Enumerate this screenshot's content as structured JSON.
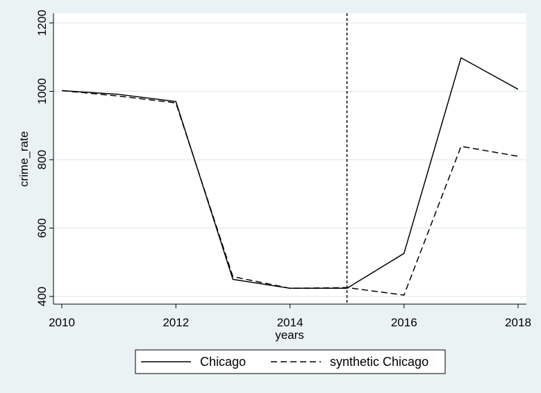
{
  "chart_data": {
    "type": "line",
    "xlabel": "years",
    "ylabel": "crime_rate",
    "x": [
      2010,
      2011,
      2012,
      2013,
      2014,
      2015,
      2016,
      2017,
      2018
    ],
    "xlim": [
      2010,
      2018
    ],
    "ylim": [
      400,
      1200
    ],
    "xticks": [
      2010,
      2012,
      2014,
      2016,
      2018
    ],
    "yticks": [
      400,
      600,
      800,
      1000,
      1200
    ],
    "grid": "horizontal",
    "vline": 2015,
    "legend_position": "bottom",
    "series": [
      {
        "name": "Chicago",
        "style": "solid",
        "color": "#000000",
        "values": [
          1002,
          991,
          970,
          450,
          424,
          424,
          526,
          1098,
          1006
        ]
      },
      {
        "name": "synthetic Chicago",
        "style": "dashed",
        "color": "#000000",
        "values": [
          1002,
          986,
          966,
          458,
          424,
          426,
          404,
          839,
          810
        ]
      }
    ]
  }
}
